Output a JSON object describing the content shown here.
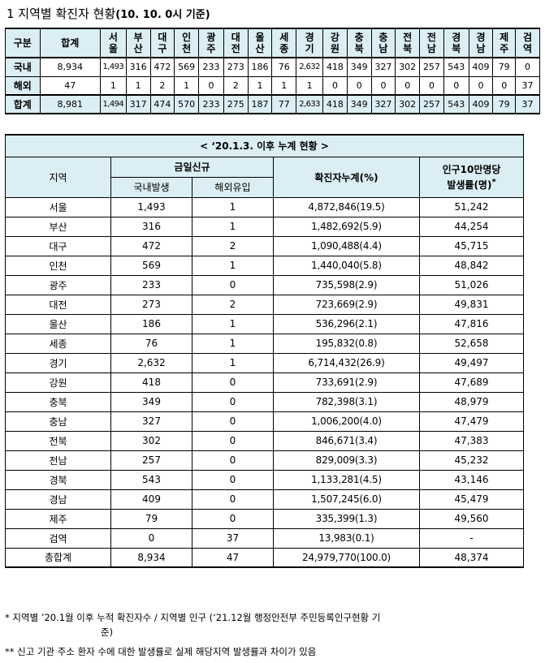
{
  "title": {
    "main": "1  지역별 확진자 현황",
    "sub": "(10. 10. 0시 기준)"
  },
  "summary": {
    "header_gubun": "구분",
    "header_total": "합계",
    "regions": [
      [
        "서",
        "울"
      ],
      [
        "부",
        "산"
      ],
      [
        "대",
        "구"
      ],
      [
        "인",
        "천"
      ],
      [
        "광",
        "주"
      ],
      [
        "대",
        "전"
      ],
      [
        "울",
        "산"
      ],
      [
        "세",
        "종"
      ],
      [
        "경",
        "기"
      ],
      [
        "강",
        "원"
      ],
      [
        "충",
        "북"
      ],
      [
        "충",
        "남"
      ],
      [
        "전",
        "북"
      ],
      [
        "전",
        "남"
      ],
      [
        "경",
        "북"
      ],
      [
        "경",
        "남"
      ],
      [
        "제",
        "주"
      ],
      [
        "검",
        "역"
      ]
    ],
    "rows": [
      {
        "label": "국내",
        "total": "8,934",
        "values": [
          "1,493",
          "316",
          "472",
          "569",
          "233",
          "273",
          "186",
          "76",
          "2,632",
          "418",
          "349",
          "327",
          "302",
          "257",
          "543",
          "409",
          "79",
          "0"
        ]
      },
      {
        "label": "해외",
        "total": "47",
        "values": [
          "1",
          "1",
          "2",
          "1",
          "0",
          "2",
          "1",
          "1",
          "1",
          "0",
          "0",
          "0",
          "0",
          "0",
          "0",
          "0",
          "0",
          "37"
        ]
      },
      {
        "label": "합계",
        "total": "8,981",
        "values": [
          "1,494",
          "317",
          "474",
          "570",
          "233",
          "275",
          "187",
          "77",
          "2,633",
          "418",
          "349",
          "327",
          "302",
          "257",
          "543",
          "409",
          "79",
          "37"
        ]
      }
    ]
  },
  "cumulative": {
    "caption": "< ‘20.1.3. 이후 누계 현황 >",
    "h_region": "지역",
    "h_today": "금일신규",
    "h_domestic": "국내발생",
    "h_overseas": "해외유입",
    "h_cumulative": "확진자누계(%)",
    "h_rate_1": "인구10만명당",
    "h_rate_2": "발생률(명)",
    "h_rate_star": "*",
    "rows": [
      {
        "region": "서울",
        "domestic": "1,493",
        "overseas": "1",
        "cumulative": "4,872,846(19.5)",
        "rate": "51,242"
      },
      {
        "region": "부산",
        "domestic": "316",
        "overseas": "1",
        "cumulative": "1,482,692(5.9)",
        "rate": "44,254"
      },
      {
        "region": "대구",
        "domestic": "472",
        "overseas": "2",
        "cumulative": "1,090,488(4.4)",
        "rate": "45,715"
      },
      {
        "region": "인천",
        "domestic": "569",
        "overseas": "1",
        "cumulative": "1,440,040(5.8)",
        "rate": "48,842"
      },
      {
        "region": "광주",
        "domestic": "233",
        "overseas": "0",
        "cumulative": "735,598(2.9)",
        "rate": "51,026"
      },
      {
        "region": "대전",
        "domestic": "273",
        "overseas": "2",
        "cumulative": "723,669(2.9)",
        "rate": "49,831"
      },
      {
        "region": "울산",
        "domestic": "186",
        "overseas": "1",
        "cumulative": "536,296(2.1)",
        "rate": "47,816"
      },
      {
        "region": "세종",
        "domestic": "76",
        "overseas": "1",
        "cumulative": "195,832(0.8)",
        "rate": "52,658"
      },
      {
        "region": "경기",
        "domestic": "2,632",
        "overseas": "1",
        "cumulative": "6,714,432(26.9)",
        "rate": "49,497"
      },
      {
        "region": "강원",
        "domestic": "418",
        "overseas": "0",
        "cumulative": "733,691(2.9)",
        "rate": "47,689"
      },
      {
        "region": "충북",
        "domestic": "349",
        "overseas": "0",
        "cumulative": "782,398(3.1)",
        "rate": "48,979"
      },
      {
        "region": "충남",
        "domestic": "327",
        "overseas": "0",
        "cumulative": "1,006,200(4.0)",
        "rate": "47,479"
      },
      {
        "region": "전북",
        "domestic": "302",
        "overseas": "0",
        "cumulative": "846,671(3.4)",
        "rate": "47,383"
      },
      {
        "region": "전남",
        "domestic": "257",
        "overseas": "0",
        "cumulative": "829,009(3.3)",
        "rate": "45,232"
      },
      {
        "region": "경북",
        "domestic": "543",
        "overseas": "0",
        "cumulative": "1,133,281(4.5)",
        "rate": "43,146"
      },
      {
        "region": "경남",
        "domestic": "409",
        "overseas": "0",
        "cumulative": "1,507,245(6.0)",
        "rate": "45,479"
      },
      {
        "region": "제주",
        "domestic": "79",
        "overseas": "0",
        "cumulative": "335,399(1.3)",
        "rate": "49,560"
      },
      {
        "region": "검역",
        "domestic": "0",
        "overseas": "37",
        "cumulative": "13,983(0.1)",
        "rate": "-"
      },
      {
        "region": "총합계",
        "domestic": "8,934",
        "overseas": "47",
        "cumulative": "24,979,770(100.0)",
        "rate": "48,374"
      }
    ]
  },
  "notes": {
    "note1_line1": "* 지역별 ’20.1월 이후 누적 확진자수 / 지역별 인구 (‘21.12월 행정안전부 주민등록인구현황 기",
    "note1_line2": "준)",
    "note2": "** 신고 기관 주소 환자 수에 대한 발생률로 실제 해당지역 발생률과 차이가 있음"
  },
  "colors": {
    "header_bg": "#daeef3",
    "border": "#000000"
  }
}
